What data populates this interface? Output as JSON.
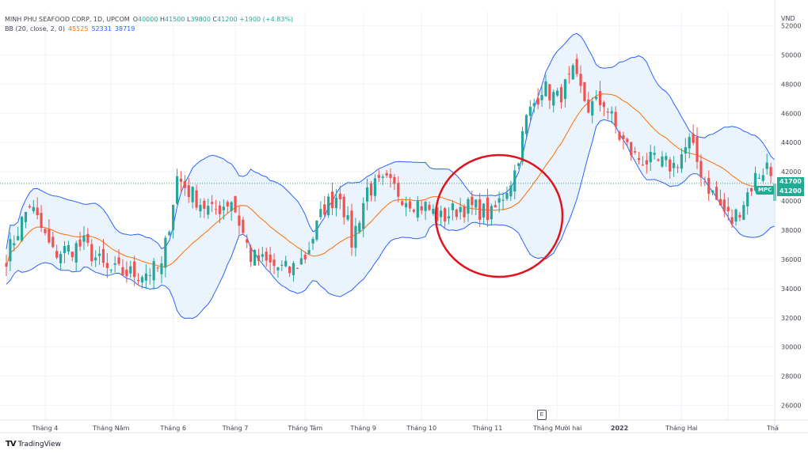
{
  "header": {
    "symbol_line": "MINH PHU SEAFOOD CORP, 1D, UPCOM",
    "open_label": "O",
    "open": "40000",
    "high_label": "H",
    "high": "41500",
    "low_label": "L",
    "low": "39800",
    "close_label": "C",
    "close": "41200",
    "change": "+1900 (+4.83%)",
    "bb_label": "BB (20, close, 2, 0)",
    "bb_basis": "45525",
    "bb_upper": "52331",
    "bb_lower": "38719"
  },
  "unit": "VND",
  "symbol_tag": "MPC",
  "price_tags": [
    {
      "label": "41700",
      "color": "#22ab94"
    },
    {
      "label": "41200",
      "color": "#22ab94"
    }
  ],
  "event_marker": "E",
  "brand": {
    "logo": "TV",
    "name": "TradingView"
  },
  "colors": {
    "up": "#26a69a",
    "down": "#ef5350",
    "basis": "#ff6d00",
    "bands": "#2962ff",
    "band_fill": "#e3f0fb",
    "annotation": "#e0141e",
    "grid": "#f0f3fa",
    "last_price_line": "#22ab94"
  },
  "chart_data": {
    "type": "candlestick",
    "title": "MINH PHU SEAFOOD CORP, 1D, UPCOM",
    "ylabel": "VND",
    "ylim": [
      25000,
      53000
    ],
    "yticks": [
      26000,
      28000,
      30000,
      32000,
      34000,
      36000,
      38000,
      40000,
      42000,
      44000,
      46000,
      48000,
      50000,
      52000
    ],
    "xtick_labels": [
      "Tháng 4",
      "Tháng Năm",
      "Tháng 6",
      "Tháng 7",
      "Tháng Tám",
      "Tháng 9",
      "Tháng 10",
      "Tháng 11",
      "Tháng Mười hai",
      "2022",
      "Tháng Hai",
      "Thá"
    ],
    "grid": true,
    "annotation": {
      "type": "circle",
      "color": "red",
      "around": "Tháng 10 consolidation before breakout"
    },
    "close_anchors": [
      [
        0,
        36200
      ],
      [
        6,
        39800
      ],
      [
        12,
        36400
      ],
      [
        20,
        37000
      ],
      [
        26,
        35200
      ],
      [
        34,
        35000
      ],
      [
        40,
        35400
      ],
      [
        44,
        41600
      ],
      [
        48,
        40400
      ],
      [
        53,
        39200
      ],
      [
        58,
        40100
      ],
      [
        63,
        36200
      ],
      [
        68,
        35600
      ],
      [
        73,
        35200
      ],
      [
        77,
        36200
      ],
      [
        82,
        39600
      ],
      [
        86,
        40600
      ],
      [
        89,
        37200
      ],
      [
        93,
        40800
      ],
      [
        98,
        41200
      ],
      [
        103,
        40200
      ],
      [
        108,
        39600
      ],
      [
        112,
        38800
      ],
      [
        117,
        39600
      ],
      [
        121,
        39500
      ],
      [
        125,
        39000
      ],
      [
        128,
        40400
      ],
      [
        131,
        42000
      ],
      [
        134,
        45600
      ],
      [
        138,
        47800
      ],
      [
        142,
        47000
      ],
      [
        146,
        48600
      ],
      [
        150,
        46400
      ],
      [
        154,
        46800
      ],
      [
        158,
        44400
      ],
      [
        162,
        43000
      ],
      [
        167,
        42600
      ],
      [
        172,
        42400
      ],
      [
        176,
        44000
      ],
      [
        180,
        41400
      ],
      [
        184,
        39600
      ],
      [
        187,
        38600
      ],
      [
        190,
        40000
      ],
      [
        193,
        41600
      ],
      [
        196,
        42400
      ],
      [
        198,
        41200
      ]
    ],
    "last": {
      "open": 40000,
      "high": 41500,
      "low": 39800,
      "close": 41200
    },
    "bollinger": {
      "period": 20,
      "stddev": 2,
      "basis": 45525,
      "upper": 52331,
      "lower": 38719
    }
  }
}
